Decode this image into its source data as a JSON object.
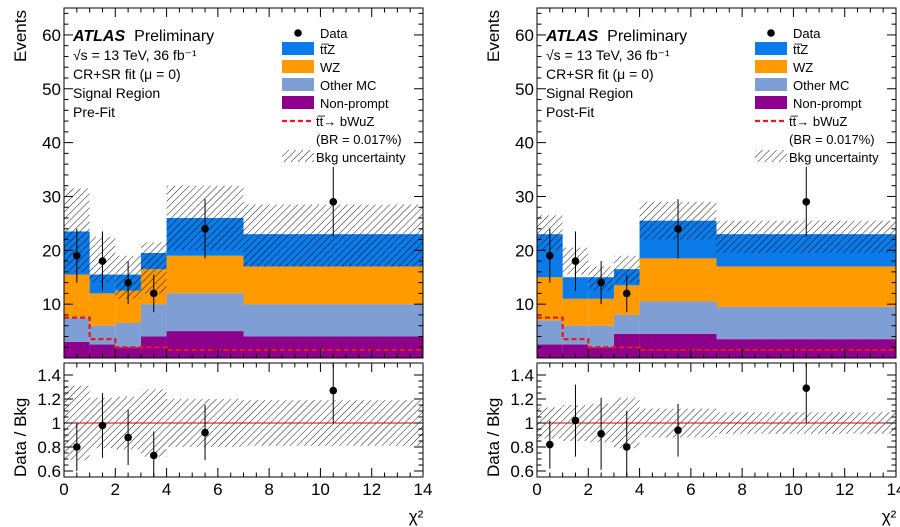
{
  "colors": {
    "ttz": "#0a7be8",
    "wz": "#ff9a00",
    "other_mc": "#7f9fd4",
    "nonprompt": "#8c008c",
    "signal": "#e8191a",
    "ref_line": "#cc0000"
  },
  "legend": {
    "data": "Data",
    "ttz": "tt̅Z",
    "wz": "WZ",
    "other_mc": "Other MC",
    "nonprompt": "Non-prompt",
    "signal_line1": "tt̅→ bWuZ",
    "signal_line2": "(BR = 0.017%)",
    "bkg_unc": "Bkg uncertainty"
  },
  "labels": {
    "atlas": "ATLAS",
    "preliminary": "Preliminary",
    "energy": "√s = 13 TeV, 36 fb⁻¹",
    "fit": "CR+SR fit (μ = 0)",
    "region": "Signal Region"
  },
  "chart_data": [
    {
      "type": "bar",
      "stacked": true,
      "stage": "Pre-Fit",
      "ylabel": "Events",
      "ratio_ylabel": "Data / Bkg",
      "xlabel": "χ²",
      "xlim": [
        0,
        14
      ],
      "ylim": [
        0,
        65
      ],
      "ratio_ylim": [
        0.55,
        1.5
      ],
      "bin_edges": [
        0,
        1,
        2,
        3,
        4,
        7,
        14
      ],
      "xticks": [
        0,
        2,
        4,
        6,
        8,
        10,
        12,
        14
      ],
      "yticks": [
        10,
        20,
        30,
        40,
        50,
        60
      ],
      "ratio_yticks": [
        0.6,
        0.8,
        1,
        1.2,
        1.4
      ],
      "series": [
        {
          "name": "Non-prompt",
          "key": "nonprompt",
          "values": [
            3,
            2.5,
            2,
            4,
            5,
            4
          ]
        },
        {
          "name": "Other MC",
          "key": "other_mc",
          "values": [
            4.5,
            3.5,
            4.5,
            6,
            7,
            6
          ]
        },
        {
          "name": "WZ",
          "key": "wz",
          "values": [
            8,
            6,
            6,
            6.5,
            7,
            7
          ]
        },
        {
          "name": "tt̅Z",
          "key": "ttz",
          "values": [
            8,
            3.5,
            3,
            3,
            7,
            6
          ]
        }
      ],
      "signal": [
        7.5,
        3.5,
        2,
        2,
        1.5,
        1.5
      ],
      "band": [
        [
          16,
          31.5
        ],
        [
          14,
          22.5
        ],
        [
          11,
          19
        ],
        [
          12,
          21.5
        ],
        [
          20,
          32
        ],
        [
          17,
          28.5
        ]
      ],
      "data": {
        "x": [
          0.5,
          1.5,
          2.5,
          3.5,
          5.5,
          10.5
        ],
        "y": [
          19,
          18,
          14,
          12,
          24,
          29
        ],
        "err": [
          5,
          5.5,
          4,
          3.5,
          5.5,
          6.5
        ]
      },
      "ratio": {
        "y": [
          0.8,
          0.98,
          0.88,
          0.73,
          0.92,
          1.27
        ],
        "err": [
          0.2,
          0.27,
          0.23,
          0.2,
          0.23,
          0.27
        ]
      },
      "ratio_band": [
        [
          0.69,
          1.31
        ],
        [
          0.79,
          1.21
        ],
        [
          0.78,
          1.22
        ],
        [
          0.72,
          1.28
        ],
        [
          0.8,
          1.2
        ],
        [
          0.81,
          1.19
        ]
      ]
    },
    {
      "type": "bar",
      "stacked": true,
      "stage": "Post-Fit",
      "ylabel": "Events",
      "ratio_ylabel": "Data / Bkg",
      "xlabel": "χ²",
      "xlim": [
        0,
        14
      ],
      "ylim": [
        0,
        65
      ],
      "ratio_ylim": [
        0.55,
        1.5
      ],
      "bin_edges": [
        0,
        1,
        2,
        3,
        4,
        7,
        14
      ],
      "xticks": [
        0,
        2,
        4,
        6,
        8,
        10,
        12,
        14
      ],
      "yticks": [
        10,
        20,
        30,
        40,
        50,
        60
      ],
      "ratio_yticks": [
        0.6,
        0.8,
        1,
        1.2,
        1.4
      ],
      "series": [
        {
          "name": "Non-prompt",
          "key": "nonprompt",
          "values": [
            2.5,
            2.5,
            2,
            4.5,
            4.5,
            3.5
          ]
        },
        {
          "name": "Other MC",
          "key": "other_mc",
          "values": [
            4.5,
            3.5,
            4,
            3.5,
            6,
            6
          ]
        },
        {
          "name": "WZ",
          "key": "wz",
          "values": [
            8,
            5,
            5,
            5.5,
            8,
            7.5
          ]
        },
        {
          "name": "tt̅Z",
          "key": "ttz",
          "values": [
            8,
            4,
            4,
            3,
            7,
            6
          ]
        }
      ],
      "signal": [
        7.5,
        3.5,
        2,
        2,
        1.5,
        1.5
      ],
      "band": [
        [
          20,
          26.5
        ],
        [
          15.5,
          20.5
        ],
        [
          12.5,
          17
        ],
        [
          14,
          19
        ],
        [
          22,
          29
        ],
        [
          19.5,
          25.5
        ]
      ],
      "data": {
        "x": [
          0.5,
          1.5,
          2.5,
          3.5,
          5.5,
          10.5
        ],
        "y": [
          19,
          18,
          14,
          12,
          24,
          29
        ],
        "err": [
          5,
          5.5,
          4,
          3.5,
          5.5,
          6.5
        ]
      },
      "ratio": {
        "y": [
          0.82,
          1.02,
          0.91,
          0.8,
          0.94,
          1.29
        ],
        "err": [
          0.2,
          0.3,
          0.3,
          0.3,
          0.22,
          0.29
        ]
      },
      "ratio_band": [
        [
          0.87,
          1.13
        ],
        [
          0.85,
          1.15
        ],
        [
          0.84,
          1.16
        ],
        [
          0.79,
          1.21
        ],
        [
          0.88,
          1.12
        ],
        [
          0.91,
          1.09
        ]
      ]
    }
  ]
}
